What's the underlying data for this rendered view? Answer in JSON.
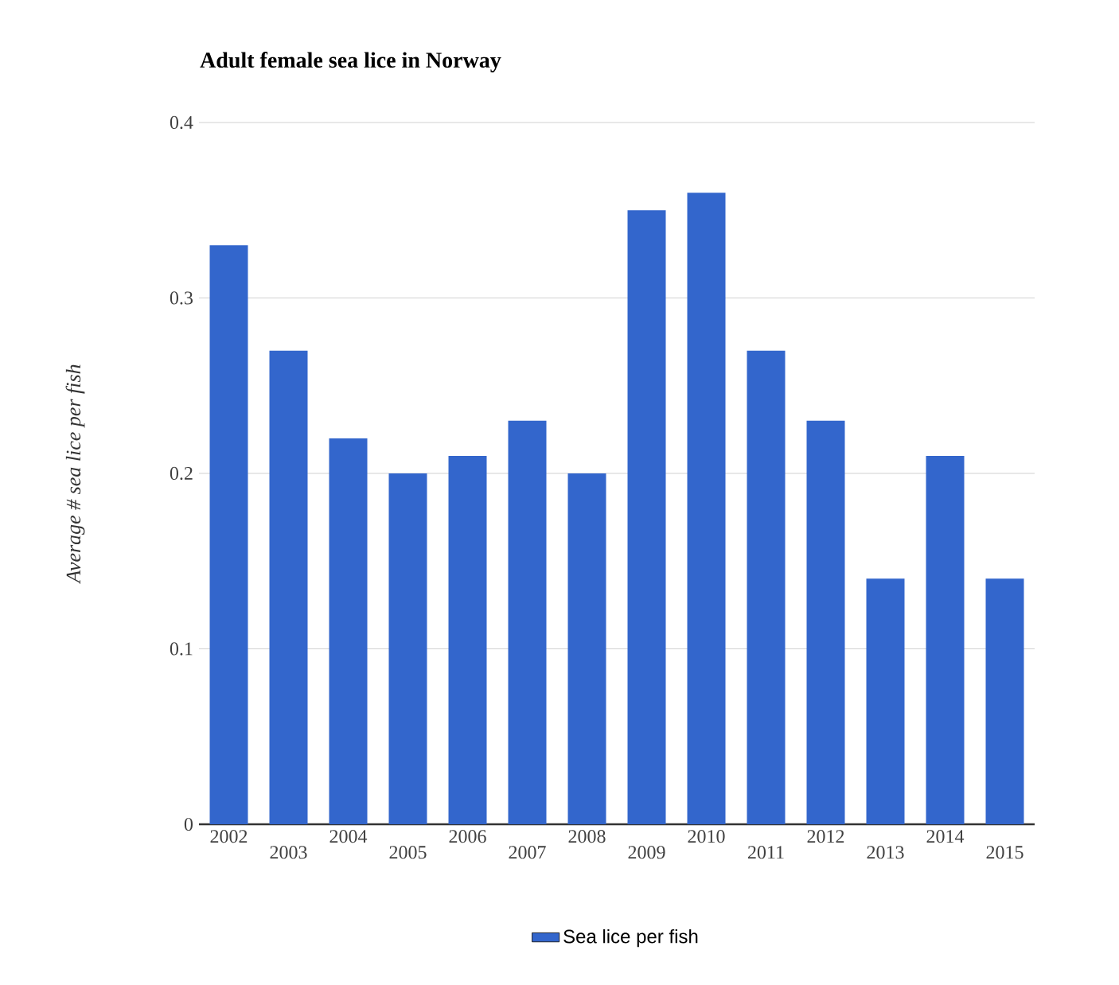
{
  "chart_data": {
    "type": "bar",
    "title": "Adult female sea lice in Norway",
    "ylabel": "Average # sea lice per fish",
    "categories": [
      "2002",
      "2003",
      "2004",
      "2005",
      "2006",
      "2007",
      "2008",
      "2009",
      "2010",
      "2011",
      "2012",
      "2013",
      "2014",
      "2015"
    ],
    "series": [
      {
        "name": "Sea lice per fish",
        "color": "#3366cc",
        "values": [
          0.33,
          0.27,
          0.22,
          0.2,
          0.21,
          0.23,
          0.2,
          0.35,
          0.36,
          0.27,
          0.23,
          0.14,
          0.21,
          0.14
        ]
      }
    ],
    "ylim": [
      0,
      0.4
    ],
    "yticks": [
      0,
      0.1,
      0.2,
      0.3,
      0.4
    ],
    "grid": "y",
    "legend": "bottom"
  }
}
